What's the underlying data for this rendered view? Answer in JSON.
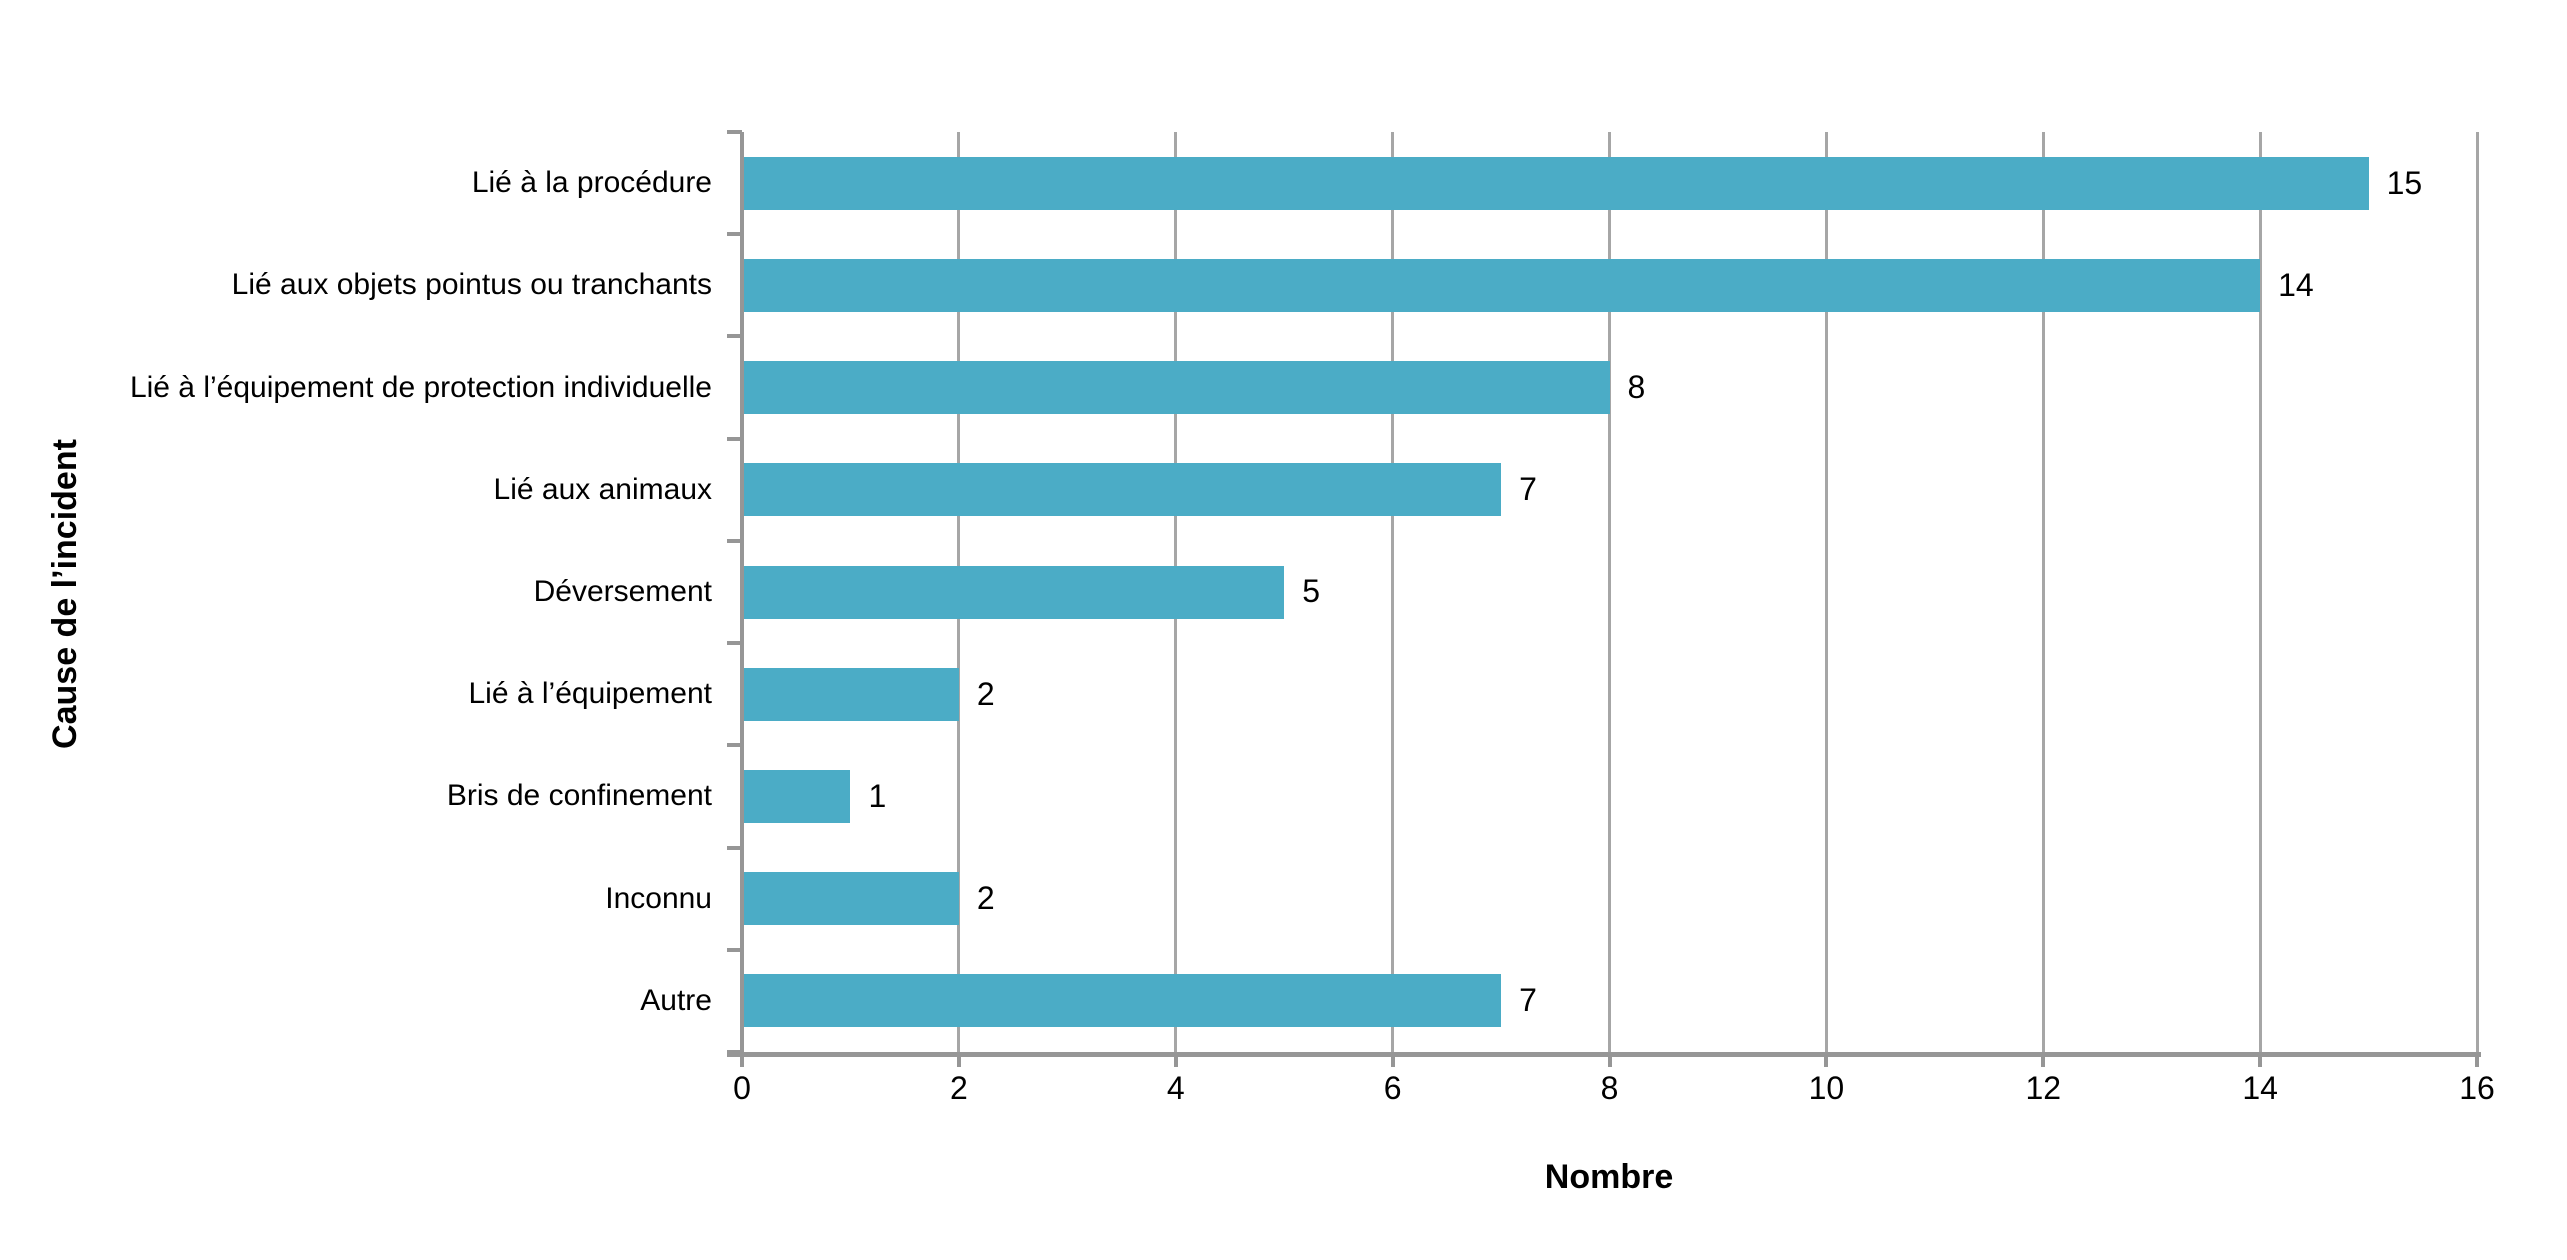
{
  "chart_data": {
    "type": "bar",
    "orientation": "horizontal",
    "title": "",
    "xlabel": "Nombre",
    "ylabel": "Cause de l’incident",
    "categories": [
      "Lié à la procédure",
      "Lié aux objets pointus ou tranchants",
      "Lié à l’équipement de protection individuelle",
      "Lié aux animaux",
      "Déversement",
      "Lié à l’équipement",
      "Bris de confinement",
      "Inconnu",
      "Autre"
    ],
    "values": [
      15,
      14,
      8,
      7,
      5,
      2,
      1,
      2,
      7
    ],
    "data_labels": [
      "15",
      "14",
      "8",
      "7",
      "5",
      "2",
      "1",
      "2",
      "7"
    ],
    "xlim": [
      0,
      16
    ],
    "xticks": [
      0,
      2,
      4,
      6,
      8,
      10,
      12,
      14,
      16
    ],
    "grid": "vertical-on",
    "legend": "none",
    "colors": {
      "bar": "#4bacc6",
      "gridline": "#a6a6a6",
      "axis": "#969696",
      "text": "#000000",
      "background": "#ffffff"
    }
  }
}
